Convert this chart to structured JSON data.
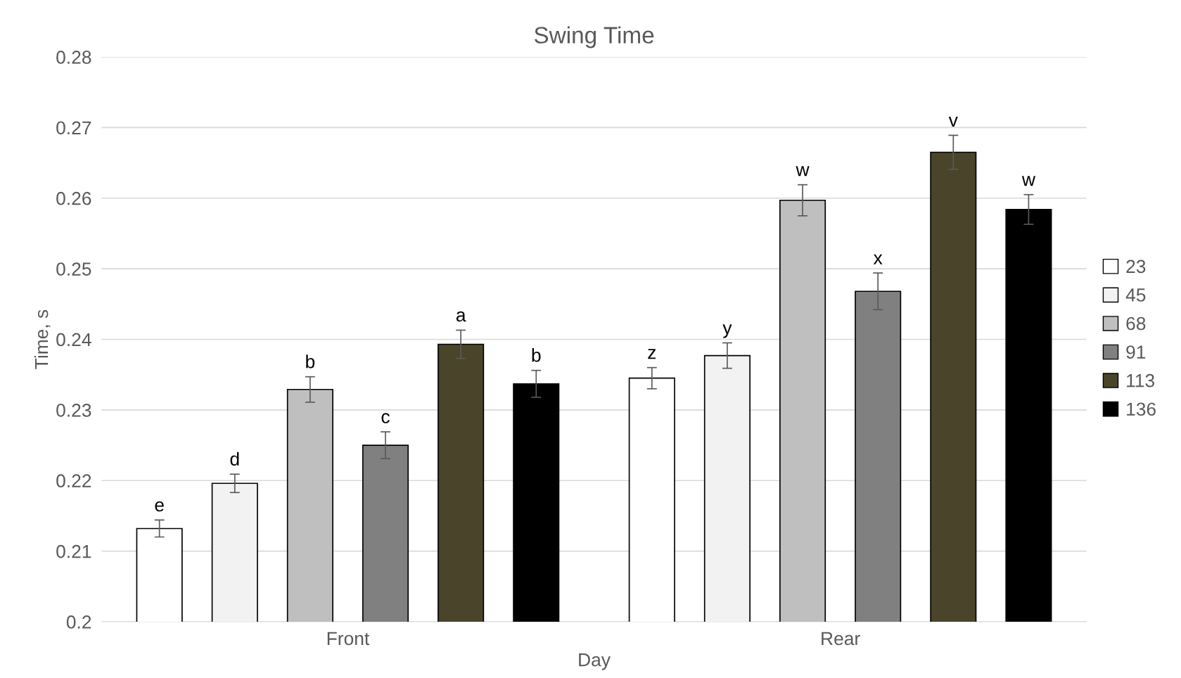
{
  "chart_data": {
    "type": "bar",
    "title": "Swing Time",
    "xlabel": "Day",
    "ylabel": "Time, s",
    "categories": [
      "Front",
      "Rear"
    ],
    "series": [
      {
        "name": "23",
        "color": "#ffffff",
        "values": [
          0.2132,
          0.2345
        ],
        "errors": [
          0.0012,
          0.0015
        ],
        "value_labels": [
          "e",
          "z"
        ]
      },
      {
        "name": "45",
        "color": "#f2f2f2",
        "values": [
          0.2196,
          0.2377
        ],
        "errors": [
          0.0013,
          0.0018
        ],
        "value_labels": [
          "d",
          "y"
        ]
      },
      {
        "name": "68",
        "color": "#bfbfbf",
        "values": [
          0.2329,
          0.2597
        ],
        "errors": [
          0.0018,
          0.0022
        ],
        "value_labels": [
          "b",
          "w"
        ]
      },
      {
        "name": "91",
        "color": "#808080",
        "values": [
          0.225,
          0.2468
        ],
        "errors": [
          0.0019,
          0.0026
        ],
        "value_labels": [
          "c",
          "x"
        ]
      },
      {
        "name": "113",
        "color": "#4a442a",
        "values": [
          0.2393,
          0.2665
        ],
        "errors": [
          0.002,
          0.0024
        ],
        "value_labels": [
          "a",
          "v"
        ]
      },
      {
        "name": "136",
        "color": "#000000",
        "values": [
          0.2337,
          0.2584
        ],
        "errors": [
          0.0019,
          0.0021
        ],
        "value_labels": [
          "b",
          "w"
        ]
      }
    ],
    "ylim": [
      0.2,
      0.28
    ],
    "yticks": [
      0.2,
      0.21,
      0.22,
      0.23,
      0.24,
      0.25,
      0.26,
      0.27,
      0.28
    ],
    "grid": "y",
    "legend": "right"
  }
}
